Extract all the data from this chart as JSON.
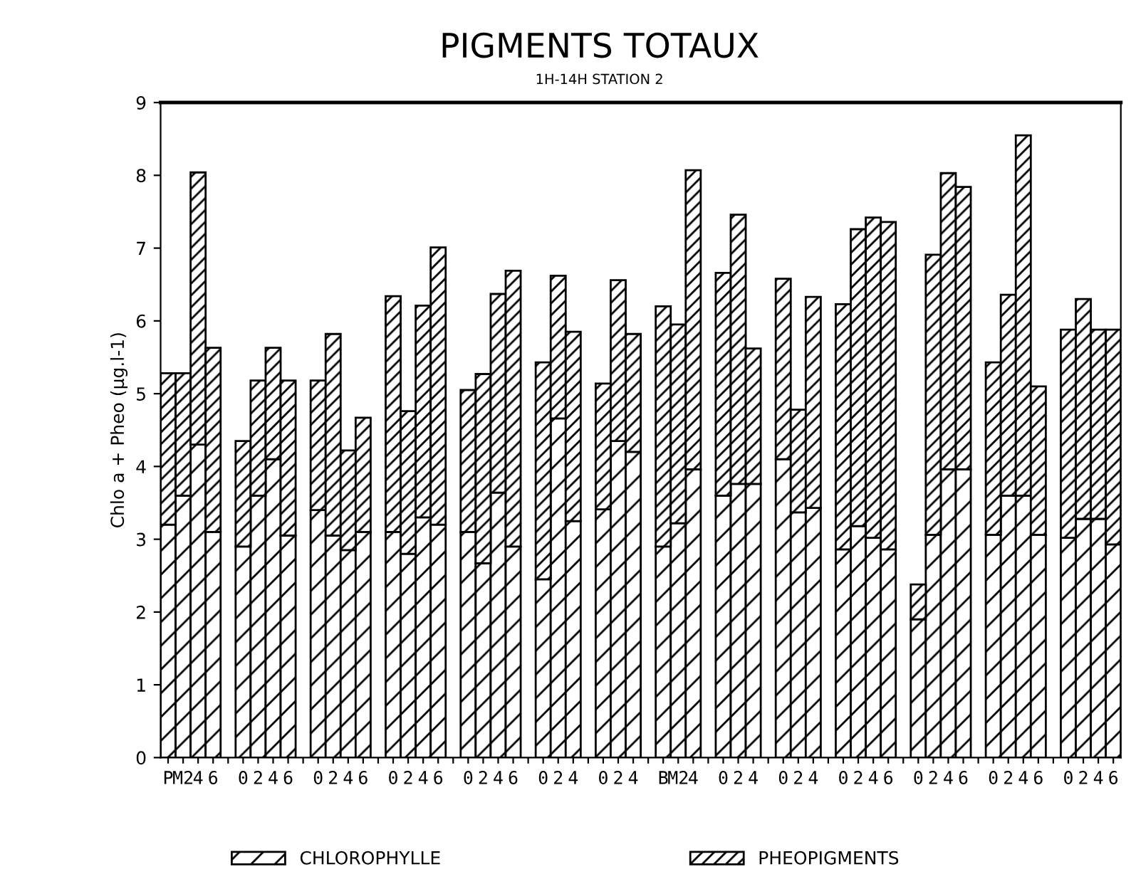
{
  "chart_data": {
    "type": "bar",
    "stacked": true,
    "title": "PIGMENTS TOTAUX",
    "subtitle": "1H-14H STATION 2",
    "ylabel": "Chlo a + Pheo (µg.l-1)",
    "categories": [
      "P",
      "M2",
      "4",
      "6",
      null,
      "0",
      "2",
      "4",
      "6",
      null,
      "0",
      "2",
      "4",
      "6",
      null,
      "0",
      "2",
      "4",
      "6",
      null,
      "0",
      "2",
      "4",
      "6",
      null,
      "0",
      "2",
      "4",
      null,
      "0",
      "2",
      "4",
      null,
      "B",
      "M2",
      "4",
      null,
      "0",
      "2",
      "4",
      null,
      "0",
      "2",
      "4",
      null,
      "0",
      "2",
      "4",
      "6",
      null,
      "0",
      "2",
      "4",
      "6",
      null,
      "0",
      "2",
      "4",
      "6",
      null,
      "0",
      "2",
      "4",
      "6"
    ],
    "series": [
      {
        "name": "CHLOROPHYLLE",
        "color": "#000000",
        "values": [
          3.2,
          3.6,
          4.3,
          3.1,
          null,
          2.9,
          3.6,
          4.1,
          3.05,
          null,
          3.4,
          3.05,
          2.85,
          3.1,
          null,
          3.1,
          2.8,
          3.3,
          3.2,
          null,
          3.1,
          2.67,
          3.64,
          2.9,
          null,
          2.45,
          4.66,
          3.25,
          null,
          3.41,
          4.35,
          4.2,
          null,
          2.9,
          3.22,
          3.96,
          null,
          3.6,
          3.76,
          3.76,
          null,
          4.1,
          3.37,
          3.43,
          null,
          2.86,
          3.18,
          3.02,
          2.86,
          null,
          1.9,
          3.06,
          3.96,
          3.96,
          null,
          3.06,
          3.6,
          3.6,
          3.06,
          null,
          3.02,
          3.28,
          3.28,
          2.93
        ]
      },
      {
        "name": "PHEOPIGMENTS",
        "color": "#000000",
        "values": [
          2.08,
          1.68,
          3.74,
          2.53,
          null,
          1.45,
          1.58,
          1.53,
          2.13,
          null,
          1.78,
          2.77,
          1.37,
          1.57,
          null,
          3.24,
          1.96,
          2.91,
          3.81,
          null,
          1.95,
          2.6,
          2.73,
          3.79,
          null,
          2.98,
          1.96,
          2.6,
          null,
          1.73,
          2.21,
          1.62,
          null,
          3.3,
          2.73,
          4.11,
          null,
          3.06,
          3.7,
          1.86,
          null,
          2.48,
          1.41,
          2.9,
          null,
          3.37,
          4.08,
          4.4,
          4.5,
          null,
          0.48,
          3.85,
          4.07,
          3.88,
          null,
          2.37,
          2.76,
          4.95,
          2.04,
          null,
          2.86,
          3.02,
          2.6,
          2.95
        ]
      }
    ],
    "ylim": [
      0,
      9
    ],
    "yticks": [
      0,
      1,
      2,
      3,
      4,
      5,
      6,
      7,
      8,
      9
    ],
    "grid": false,
    "legend": "bottom"
  }
}
